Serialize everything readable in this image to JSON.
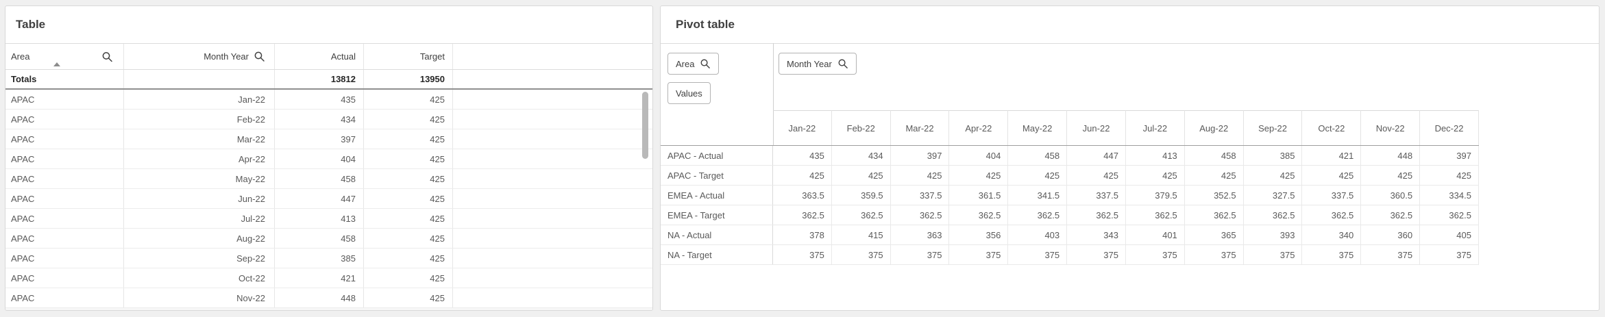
{
  "page": {
    "background": "#f0f0f0",
    "panel_border": "#d8d8d8",
    "accent_text": "#404040"
  },
  "left_table": {
    "title": "Table",
    "columns": {
      "area": "Area",
      "month_year": "Month Year",
      "actual": "Actual",
      "target": "Target"
    },
    "sort": {
      "column": "Area",
      "direction": "ascending"
    },
    "totals": {
      "label": "Totals",
      "actual": "13812",
      "target": "13950"
    },
    "rows": [
      {
        "area": "APAC",
        "month": "Jan-22",
        "actual": "435",
        "target": "425"
      },
      {
        "area": "APAC",
        "month": "Feb-22",
        "actual": "434",
        "target": "425"
      },
      {
        "area": "APAC",
        "month": "Mar-22",
        "actual": "397",
        "target": "425"
      },
      {
        "area": "APAC",
        "month": "Apr-22",
        "actual": "404",
        "target": "425"
      },
      {
        "area": "APAC",
        "month": "May-22",
        "actual": "458",
        "target": "425"
      },
      {
        "area": "APAC",
        "month": "Jun-22",
        "actual": "447",
        "target": "425"
      },
      {
        "area": "APAC",
        "month": "Jul-22",
        "actual": "413",
        "target": "425"
      },
      {
        "area": "APAC",
        "month": "Aug-22",
        "actual": "458",
        "target": "425"
      },
      {
        "area": "APAC",
        "month": "Sep-22",
        "actual": "385",
        "target": "425"
      },
      {
        "area": "APAC",
        "month": "Oct-22",
        "actual": "421",
        "target": "425"
      },
      {
        "area": "APAC",
        "month": "Nov-22",
        "actual": "448",
        "target": "425"
      }
    ]
  },
  "pivot_table": {
    "title": "Pivot table",
    "buttons": {
      "row_dimension": "Area",
      "values": "Values",
      "column_dimension": "Month Year"
    },
    "columns": [
      "Jan-22",
      "Feb-22",
      "Mar-22",
      "Apr-22",
      "May-22",
      "Jun-22",
      "Jul-22",
      "Aug-22",
      "Sep-22",
      "Oct-22",
      "Nov-22",
      "Dec-22"
    ],
    "rows": [
      {
        "label": "APAC - Actual",
        "values": [
          435,
          434,
          397,
          404,
          458,
          447,
          413,
          458,
          385,
          421,
          448,
          397
        ]
      },
      {
        "label": "APAC - Target",
        "values": [
          425,
          425,
          425,
          425,
          425,
          425,
          425,
          425,
          425,
          425,
          425,
          425
        ]
      },
      {
        "label": "EMEA - Actual",
        "values": [
          363.5,
          359.5,
          337.5,
          361.5,
          341.5,
          337.5,
          379.5,
          352.5,
          327.5,
          337.5,
          360.5,
          334.5
        ]
      },
      {
        "label": "EMEA - Target",
        "values": [
          362.5,
          362.5,
          362.5,
          362.5,
          362.5,
          362.5,
          362.5,
          362.5,
          362.5,
          362.5,
          362.5,
          362.5
        ]
      },
      {
        "label": "NA - Actual",
        "values": [
          378,
          415,
          363,
          356,
          403,
          343,
          401,
          365,
          393,
          340,
          360,
          405
        ]
      },
      {
        "label": "NA - Target",
        "values": [
          375,
          375,
          375,
          375,
          375,
          375,
          375,
          375,
          375,
          375,
          375,
          375
        ]
      }
    ]
  }
}
